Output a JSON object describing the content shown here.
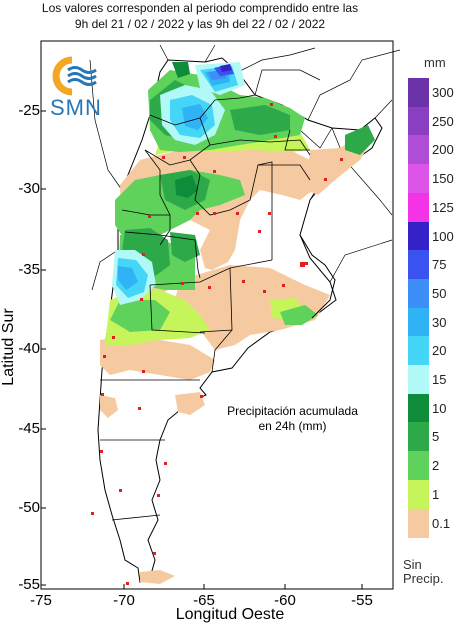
{
  "header": {
    "line1": "Los valores corresponden al periodo comprendido entre las",
    "line2": "9h del 21 / 02 / 2022  y las 9h del 22 / 02 / 2022"
  },
  "logo": {
    "text": "SMN",
    "icon": "smn-logo-icon"
  },
  "axes": {
    "y_label": "Latitud Sur",
    "x_label": "Longitud Oeste",
    "y_ticks": [
      "-25",
      "-30",
      "-35",
      "-40",
      "-45",
      "-50",
      "-55"
    ],
    "x_ticks": [
      "-75",
      "-70",
      "-65",
      "-60",
      "-55"
    ]
  },
  "annotation": {
    "line1": "Precipitación acumulada",
    "line2": "en 24h (mm)"
  },
  "legend": {
    "unit": "mm",
    "no_precip_label": "Sin Precip.",
    "items": [
      {
        "label": "300",
        "color": "#6c33a8"
      },
      {
        "label": "250",
        "color": "#8a3fc2"
      },
      {
        "label": "200",
        "color": "#b04dd6"
      },
      {
        "label": "150",
        "color": "#dd55e8"
      },
      {
        "label": "125",
        "color": "#f533e6"
      },
      {
        "label": "100",
        "color": "#3422c8"
      },
      {
        "label": "75",
        "color": "#3a52f0"
      },
      {
        "label": "50",
        "color": "#3d8ef7"
      },
      {
        "label": "30",
        "color": "#2fb3f5"
      },
      {
        "label": "20",
        "color": "#45d6f7"
      },
      {
        "label": "15",
        "color": "#b0f9f7"
      },
      {
        "label": "10",
        "color": "#0f8c3a"
      },
      {
        "label": "5",
        "color": "#2ea94a"
      },
      {
        "label": "2",
        "color": "#5ed25a"
      },
      {
        "label": "1",
        "color": "#c5f55a"
      },
      {
        "label": "0.1",
        "color": "#f6caa0"
      }
    ]
  }
}
